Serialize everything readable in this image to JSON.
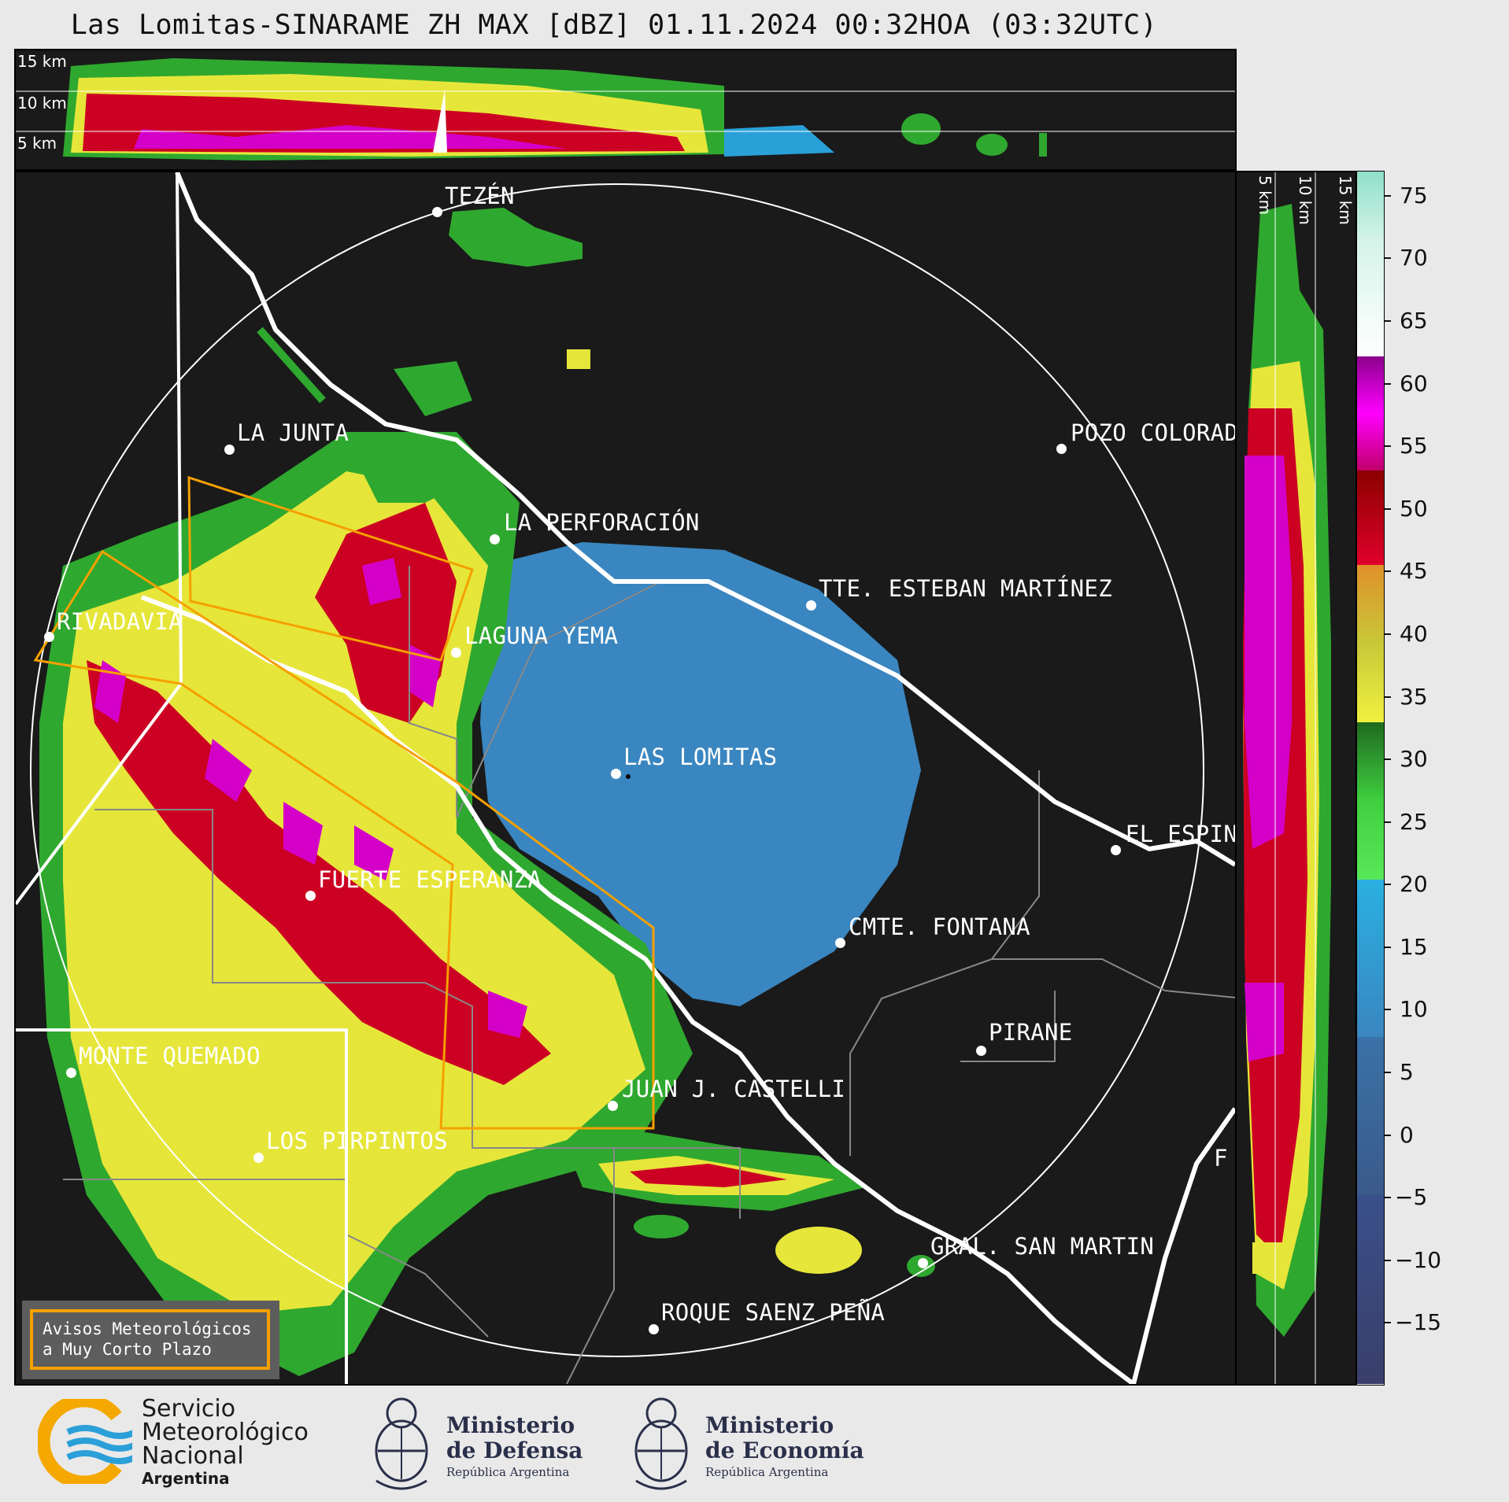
{
  "title": "Las Lomitas-SINARAME ZH MAX [dBZ] 01.11.2024 00:32HOA (03:32UTC)",
  "top_panel": {
    "km_labels": [
      "15 km",
      "10 km",
      "5 km"
    ]
  },
  "side_panel": {
    "km_labels": [
      "5 km",
      "10 km",
      "15 km"
    ]
  },
  "cities": [
    {
      "id": "tezen",
      "name": "TEZÉN"
    },
    {
      "id": "la-junta",
      "name": "LA JUNTA"
    },
    {
      "id": "pozo-colorado",
      "name": "POZO COLORAD"
    },
    {
      "id": "la-perforacion",
      "name": "LA PERFORACIÓN"
    },
    {
      "id": "tte-esteban-martinez",
      "name": "TTE. ESTEBAN MARTÍNEZ"
    },
    {
      "id": "rivadavia",
      "name": "RIVADAVIA"
    },
    {
      "id": "laguna-yema",
      "name": "LAGUNA YEMA"
    },
    {
      "id": "las-lomitas",
      "name": "LAS LOMITAS"
    },
    {
      "id": "el-espin",
      "name": "EL ESPIN"
    },
    {
      "id": "fuerte-esperanza",
      "name": "FUERTE ESPERANZA"
    },
    {
      "id": "cmte-fontana",
      "name": "CMTE. FONTANA"
    },
    {
      "id": "pirane",
      "name": "PIRANE"
    },
    {
      "id": "monte-quemado",
      "name": "MONTE QUEMADO"
    },
    {
      "id": "juan-j-castelli",
      "name": "JUAN J. CASTELLI"
    },
    {
      "id": "los-pirpintos",
      "name": "LOS PIRPINTOS"
    },
    {
      "id": "edge-f",
      "name": "F"
    },
    {
      "id": "gral-san-martin",
      "name": "GRAL. SAN MARTIN"
    },
    {
      "id": "roque-saenz-pena",
      "name": "ROQUE SAENZ PEÑA"
    }
  ],
  "colorbar": {
    "unit": "dBZ",
    "range": [
      -20,
      77
    ],
    "ticks": [
      "75",
      "70",
      "65",
      "60",
      "55",
      "50",
      "45",
      "40",
      "35",
      "30",
      "25",
      "20",
      "15",
      "10",
      "5",
      "0",
      "−5",
      "−10",
      "−15"
    ],
    "colors": {
      "teal": "#8fe0c8",
      "white": "#ffffff",
      "magenta": "#d400c8",
      "red": "#cc0022",
      "orange": "#e08a1a",
      "yellow": "#e6e63a",
      "green": "#2fa82f",
      "cyan": "#2aa0d8",
      "blue": "#3a6fa8",
      "navy": "#3a3f6a"
    }
  },
  "aviso": {
    "line1": "Avisos Meteorológicos",
    "line2": "a Muy Corto Plazo"
  },
  "logos": {
    "smn": {
      "line1": "Servicio",
      "line2": "Meteorológico",
      "line3": "Nacional",
      "line4": "Argentina"
    },
    "defensa": {
      "line1": "Ministerio",
      "line2": "de Defensa",
      "line3": "República Argentina"
    },
    "economia": {
      "line1": "Ministerio",
      "line2": "de Economía",
      "line3": "República Argentina"
    }
  }
}
